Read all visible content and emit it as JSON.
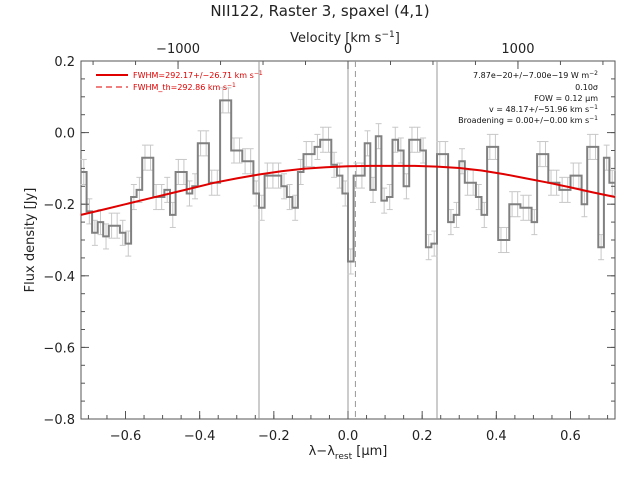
{
  "chart_data": {
    "type": "line",
    "title": "NII122, Raster 3, spaxel (4,1)",
    "xlabel": "λ−λrest [μm]",
    "xlabel_main": "λ−λ",
    "xlabel_sub": "rest",
    "xlabel_unit": " [μm]",
    "ylabel": "Flux density [Jy]",
    "top_xlabel": "Velocity [km s⁻¹]",
    "top_xlabel_main": "Velocity [km s",
    "top_xlabel_exp": "−1",
    "top_xlabel_end": "]",
    "xlim": [
      -0.72,
      0.72
    ],
    "ylim": [
      -0.8,
      0.2
    ],
    "top_xlim": [
      -1571,
      1571
    ],
    "x_ticks": [
      -0.6,
      -0.4,
      -0.2,
      0.0,
      0.2,
      0.4,
      0.6
    ],
    "x_tick_labels": [
      "−0.6",
      "−0.4",
      "−0.2",
      "0.0",
      "0.2",
      "0.4",
      "0.6"
    ],
    "y_ticks": [
      -0.8,
      -0.6,
      -0.4,
      -0.2,
      0.0,
      0.2
    ],
    "y_tick_labels": [
      "−0.8",
      "−0.6",
      "−0.4",
      "−0.2",
      "0.0",
      "0.2"
    ],
    "top_ticks": [
      -1000,
      0,
      1000
    ],
    "top_tick_labels": [
      "−1000",
      "0",
      "1000"
    ],
    "vertical_lines": [
      -0.24,
      0.0,
      0.24
    ],
    "center_dashed_line": 0.02,
    "legend": [
      {
        "label": "FWHM=292.17+/−26.71 km s",
        "exp": "−1",
        "style": "solid",
        "color": "#e00000"
      },
      {
        "label": "FWHM_th=292.86 km s",
        "exp": "−1",
        "style": "dashed",
        "color": "#e00000"
      }
    ],
    "annotations": [
      {
        "text": "7.87e−20+/−7.00e−19 W m",
        "exp": "−2"
      },
      {
        "text": "0.10σ",
        "exp": ""
      },
      {
        "text": "FOW = 0.12 μm",
        "exp": ""
      },
      {
        "text": "v = 48.17+/−51.96 km s",
        "exp": "−1"
      },
      {
        "text": "Broadening = 0.00+/−0.00 km s",
        "exp": "−1"
      }
    ],
    "series": [
      {
        "type": "step",
        "color": "#808080",
        "x": [
          -0.72,
          -0.705,
          -0.69,
          -0.675,
          -0.66,
          -0.645,
          -0.63,
          -0.615,
          -0.6,
          -0.585,
          -0.57,
          -0.555,
          -0.54,
          -0.525,
          -0.51,
          -0.495,
          -0.48,
          -0.465,
          -0.45,
          -0.435,
          -0.42,
          -0.405,
          -0.39,
          -0.375,
          -0.36,
          -0.345,
          -0.33,
          -0.315,
          -0.3,
          -0.285,
          -0.27,
          -0.255,
          -0.24,
          -0.225,
          -0.21,
          -0.195,
          -0.18,
          -0.165,
          -0.15,
          -0.135,
          -0.12,
          -0.105,
          -0.09,
          -0.075,
          -0.06,
          -0.045,
          -0.03,
          -0.015,
          0.0,
          0.015,
          0.03,
          0.045,
          0.06,
          0.075,
          0.09,
          0.105,
          0.12,
          0.135,
          0.15,
          0.165,
          0.18,
          0.195,
          0.21,
          0.225,
          0.24,
          0.255,
          0.27,
          0.285,
          0.3,
          0.315,
          0.33,
          0.345,
          0.36,
          0.375,
          0.39,
          0.405,
          0.42,
          0.435,
          0.45,
          0.465,
          0.48,
          0.495,
          0.51,
          0.525,
          0.54,
          0.555,
          0.57,
          0.585,
          0.6,
          0.615,
          0.63,
          0.645,
          0.66,
          0.675,
          0.69,
          0.705
        ],
        "y": [
          -0.11,
          -0.22,
          -0.28,
          -0.25,
          -0.29,
          -0.26,
          -0.26,
          -0.28,
          -0.31,
          -0.18,
          -0.16,
          -0.07,
          -0.07,
          -0.18,
          -0.18,
          -0.16,
          -0.23,
          -0.11,
          -0.11,
          -0.17,
          -0.15,
          -0.03,
          -0.03,
          -0.14,
          -0.14,
          0.09,
          0.09,
          -0.05,
          -0.05,
          -0.08,
          -0.08,
          -0.17,
          -0.21,
          -0.12,
          -0.12,
          -0.12,
          -0.15,
          -0.18,
          -0.21,
          -0.11,
          -0.06,
          -0.06,
          -0.04,
          -0.02,
          -0.02,
          -0.09,
          -0.12,
          -0.17,
          -0.36,
          -0.12,
          -0.12,
          -0.03,
          -0.16,
          -0.01,
          -0.19,
          -0.18,
          -0.02,
          -0.05,
          -0.15,
          -0.02,
          -0.02,
          -0.05,
          -0.32,
          -0.31,
          -0.06,
          -0.06,
          -0.25,
          -0.23,
          -0.08,
          -0.14,
          -0.14,
          -0.18,
          -0.23,
          -0.04,
          -0.04,
          -0.3,
          -0.3,
          -0.2,
          -0.2,
          -0.21,
          -0.21,
          -0.25,
          -0.06,
          -0.06,
          -0.14,
          -0.14,
          -0.16,
          -0.16,
          -0.12,
          -0.12,
          -0.2,
          -0.04,
          -0.04,
          -0.32,
          -0.07,
          -0.14
        ],
        "error": 0.035
      },
      {
        "type": "line",
        "color": "#e00000",
        "x": [
          -0.72,
          -0.66,
          -0.6,
          -0.54,
          -0.48,
          -0.42,
          -0.36,
          -0.3,
          -0.24,
          -0.18,
          -0.12,
          -0.06,
          0.0,
          0.06,
          0.12,
          0.18,
          0.24,
          0.3,
          0.36,
          0.42,
          0.48,
          0.54,
          0.6,
          0.66,
          0.72
        ],
        "y": [
          -0.23,
          -0.215,
          -0.2,
          -0.185,
          -0.17,
          -0.155,
          -0.14,
          -0.128,
          -0.117,
          -0.108,
          -0.101,
          -0.097,
          -0.094,
          -0.093,
          -0.093,
          -0.093,
          -0.095,
          -0.099,
          -0.106,
          -0.116,
          -0.128,
          -0.14,
          -0.153,
          -0.167,
          -0.18
        ]
      }
    ]
  }
}
